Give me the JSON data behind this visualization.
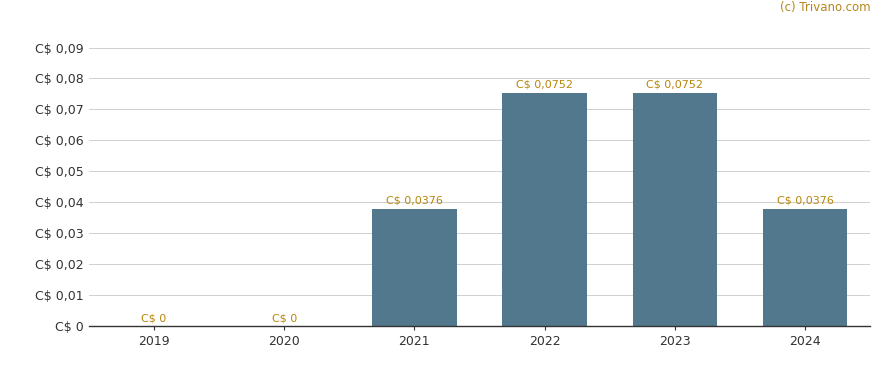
{
  "categories": [
    "2019",
    "2020",
    "2021",
    "2022",
    "2023",
    "2024"
  ],
  "values": [
    0,
    0,
    0.0376,
    0.0752,
    0.0752,
    0.0376
  ],
  "bar_color": "#52788e",
  "bar_labels": [
    "C$ 0",
    "C$ 0",
    "C$ 0,0376",
    "C$ 0,0752",
    "C$ 0,0752",
    "C$ 0,0376"
  ],
  "label_color": "#b8860b",
  "ytick_labels": [
    "C$ 0",
    "C$ 0,01",
    "C$ 0,02",
    "C$ 0,03",
    "C$ 0,04",
    "C$ 0,05",
    "C$ 0,06",
    "C$ 0,07",
    "C$ 0,08",
    "C$ 0,09"
  ],
  "ytick_values": [
    0,
    0.01,
    0.02,
    0.03,
    0.04,
    0.05,
    0.06,
    0.07,
    0.08,
    0.09
  ],
  "ylim": [
    0,
    0.097
  ],
  "watermark": "(c) Trivano.com",
  "watermark_color": "#b5871a",
  "background_color": "#ffffff",
  "grid_color": "#d0d0d0",
  "bar_label_fontsize": 8.0,
  "axis_label_fontsize": 9.0,
  "watermark_fontsize": 8.5,
  "bar_width": 0.65
}
